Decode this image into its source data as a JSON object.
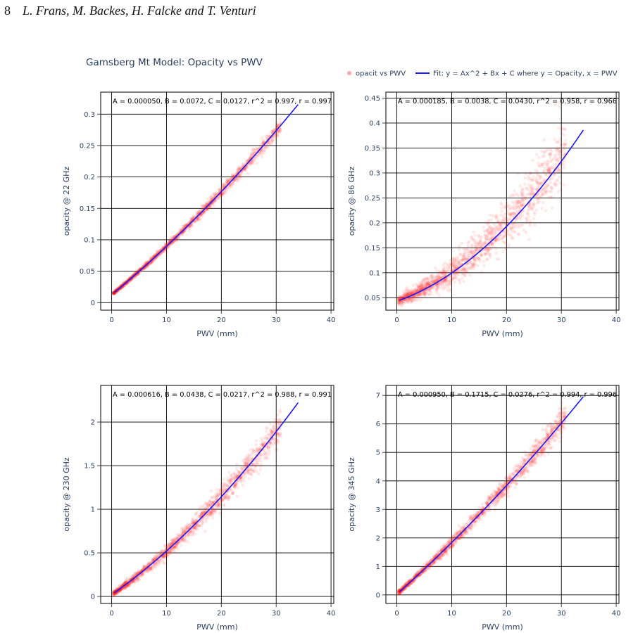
{
  "page": {
    "number": "8",
    "authors": "L. Frans, M. Backes, H. Falcke and T. Venturi"
  },
  "figure": {
    "title": "Gamsberg Mt Model: Opacity vs PWV",
    "legend": {
      "scatter_label": "opacit vs PWV",
      "fit_label": "Fit: y = Ax^2 + Bx + C where y = Opacity, x = PWV"
    },
    "colors": {
      "scatter": "#ff1a1a",
      "fit": "#1a1aff",
      "text": "#2a3f5f",
      "grid": "#000000"
    }
  },
  "chart_data": [
    {
      "type": "scatter",
      "xlabel": "PWV (mm)",
      "ylabel": "opacity @ 22 GHz",
      "annotation": "A = 0.000050, B = 0.0072, C = 0.0127, r^2 = 0.997, r = 0.997",
      "fit": {
        "A": 5e-05,
        "B": 0.0072,
        "C": 0.0127
      },
      "x_range": [
        -2,
        40.5
      ],
      "y_range": [
        -0.012,
        0.335
      ],
      "xticks": [
        0,
        10,
        20,
        30,
        40
      ],
      "yticks": [
        0,
        0.05,
        0.1,
        0.15,
        0.2,
        0.25,
        0.3
      ],
      "ytick_labels": [
        "0",
        "0.05",
        "0.1",
        "0.15",
        "0.2",
        "0.25",
        "0.3"
      ],
      "data_x_max": 34,
      "spread": 0.006
    },
    {
      "type": "scatter",
      "xlabel": "PWV (mm)",
      "ylabel": "opacity @ 86 GHz",
      "annotation": "A = 0.000185, B = 0.0038, C = 0.0430, r^2 = 0.958, r = 0.966",
      "fit": {
        "A": 0.000185,
        "B": 0.0038,
        "C": 0.043
      },
      "x_range": [
        -2,
        40.5
      ],
      "y_range": [
        0.025,
        0.462
      ],
      "xticks": [
        0,
        10,
        20,
        30,
        40
      ],
      "yticks": [
        0.05,
        0.1,
        0.15,
        0.2,
        0.25,
        0.3,
        0.35,
        0.4,
        0.45
      ],
      "ytick_labels": [
        "0.05",
        "0.1",
        "0.15",
        "0.2",
        "0.25",
        "0.3",
        "0.35",
        "0.4",
        "0.45"
      ],
      "data_x_max": 34,
      "spread": 0.035
    },
    {
      "type": "scatter",
      "xlabel": "PWV (mm)",
      "ylabel": "opacity @ 230 GHz",
      "annotation": "A = 0.000616, B = 0.0438, C = 0.0217, r^2 = 0.988, r = 0.991",
      "fit": {
        "A": 0.000616,
        "B": 0.0438,
        "C": 0.0217
      },
      "x_range": [
        -2,
        40.5
      ],
      "y_range": [
        -0.08,
        2.42
      ],
      "xticks": [
        0,
        10,
        20,
        30,
        40
      ],
      "yticks": [
        0,
        0.5,
        1,
        1.5,
        2
      ],
      "ytick_labels": [
        "0",
        "0.5",
        "1",
        "1.5",
        "2"
      ],
      "data_x_max": 34,
      "spread": 0.09
    },
    {
      "type": "scatter",
      "xlabel": "PWV (mm)",
      "ylabel": "opacity @ 345 GHz",
      "annotation": "A = 0.000950, B = 0.1715, C = 0.0276, r^2 = 0.994, r = 0.996",
      "fit": {
        "A": 0.00095,
        "B": 0.1715,
        "C": 0.0276
      },
      "x_range": [
        -2,
        40.5
      ],
      "y_range": [
        -0.3,
        7.35
      ],
      "xticks": [
        0,
        10,
        20,
        30,
        40
      ],
      "yticks": [
        0,
        1,
        2,
        3,
        4,
        5,
        6,
        7
      ],
      "ytick_labels": [
        "0",
        "1",
        "2",
        "3",
        "4",
        "5",
        "6",
        "7"
      ],
      "data_x_max": 34,
      "spread": 0.22
    }
  ]
}
